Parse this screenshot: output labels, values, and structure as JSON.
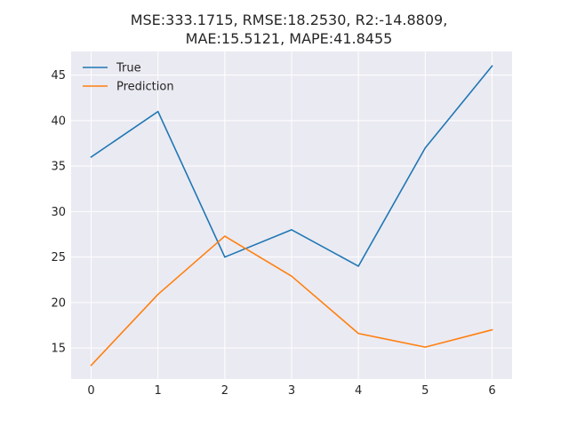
{
  "chart_data": {
    "type": "line",
    "title": [
      "MSE:333.1715, RMSE:18.2530, R2:-14.8809,",
      "MAE:15.5121, MAPE:41.8455"
    ],
    "xlabel": "",
    "ylabel": "",
    "x": [
      0,
      1,
      2,
      3,
      4,
      5,
      6
    ],
    "xlim": [
      -0.3,
      6.3
    ],
    "ylim": [
      11.6,
      47.6
    ],
    "xticks": [
      0,
      1,
      2,
      3,
      4,
      5,
      6
    ],
    "yticks": [
      15,
      20,
      25,
      30,
      35,
      40,
      45
    ],
    "grid": true,
    "legend_position": "top-left",
    "series": [
      {
        "name": "True",
        "color": "#1f77b4",
        "values": [
          36,
          41,
          25,
          28,
          24,
          37,
          46
        ]
      },
      {
        "name": "Prediction",
        "color": "#ff7f0e",
        "values": [
          13.1,
          20.9,
          27.3,
          22.9,
          16.6,
          15.1,
          17.0
        ]
      }
    ],
    "background": "#eaeaf2",
    "grid_color": "#ffffff"
  }
}
